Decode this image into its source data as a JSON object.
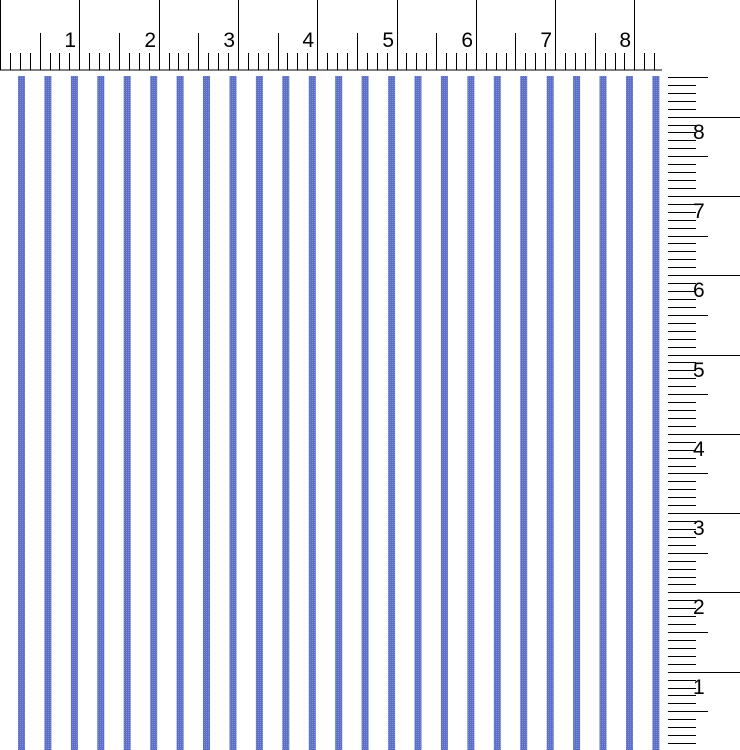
{
  "top_ruler": {
    "labels": [
      "1",
      "2",
      "3",
      "4",
      "5",
      "6",
      "7",
      "8"
    ],
    "unit": "inch"
  },
  "right_ruler": {
    "labels": [
      "8",
      "7",
      "6",
      "5",
      "4",
      "3",
      "2",
      "1"
    ],
    "unit": "inch"
  },
  "pattern": {
    "name": "vertical-stripes",
    "stripe_color": "#5b6fc6",
    "background_color": "#ffffff",
    "stripes_per_inch": 3
  }
}
